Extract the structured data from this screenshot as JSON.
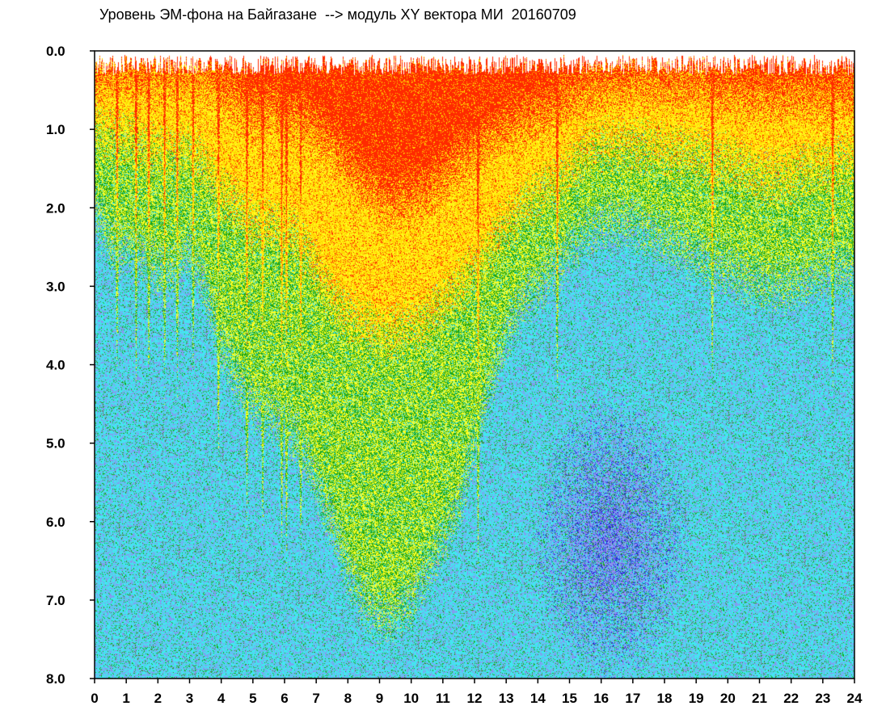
{
  "title": "Уровень ЭМ-фона на Байгазане  --> модуль XY вектора МИ  20160709",
  "chart_data": {
    "type": "heatmap",
    "title": "Уровень ЭМ-фона на Байгазане  --> модуль XY вектора МИ  20160709",
    "xlabel": "",
    "ylabel": "",
    "xlim": [
      0,
      24
    ],
    "ylim": [
      0,
      8
    ],
    "y_inverted": true,
    "xticks": [
      "0",
      "1",
      "2",
      "3",
      "4",
      "5",
      "6",
      "7",
      "8",
      "9",
      "10",
      "11",
      "12",
      "13",
      "14",
      "15",
      "16",
      "17",
      "18",
      "19",
      "20",
      "21",
      "22",
      "23",
      "24"
    ],
    "yticks": [
      "0.0",
      "1.0",
      "2.0",
      "3.0",
      "4.0",
      "5.0",
      "6.0",
      "7.0",
      "8.0"
    ],
    "color_scale": [
      "#ff2a00",
      "#ffd800",
      "#ffff20",
      "#1aa51a",
      "#43e6f0",
      "#8f8ff0",
      "#2a2ad8"
    ],
    "profile": {
      "description_hours": [
        0,
        0.5,
        1,
        1.5,
        2,
        2.5,
        3,
        3.5,
        4,
        4.5,
        5,
        5.5,
        6,
        6.5,
        7,
        7.5,
        8,
        8.5,
        9,
        9.5,
        10,
        10.5,
        11,
        11.5,
        12,
        12.5,
        13,
        13.5,
        14,
        14.5,
        15,
        15.5,
        16,
        16.5,
        17,
        17.5,
        18,
        18.5,
        19,
        19.5,
        20,
        20.5,
        21,
        21.5,
        22,
        22.5,
        23,
        23.5,
        24
      ],
      "red_edge": [
        0.3,
        0.3,
        0.25,
        0.3,
        0.3,
        0.3,
        0.25,
        0.3,
        0.5,
        0.6,
        0.8,
        0.7,
        0.9,
        0.8,
        1.0,
        1.2,
        1.5,
        1.7,
        1.9,
        1.9,
        1.9,
        1.8,
        1.6,
        1.4,
        1.3,
        1.1,
        1.0,
        0.9,
        0.8,
        0.7,
        0.6,
        0.5,
        0.45,
        0.4,
        0.4,
        0.4,
        0.45,
        0.45,
        0.45,
        0.5,
        0.5,
        0.55,
        0.6,
        0.6,
        0.55,
        0.55,
        0.55,
        0.55,
        0.55
      ],
      "yellow_edge": [
        1.0,
        1.1,
        1.1,
        1.2,
        1.3,
        1.3,
        1.2,
        1.5,
        1.8,
        2.0,
        2.2,
        2.2,
        2.3,
        2.4,
        2.8,
        3.2,
        3.4,
        3.5,
        3.6,
        3.6,
        3.5,
        3.4,
        3.2,
        3.0,
        2.8,
        2.5,
        2.2,
        2.0,
        1.8,
        1.7,
        1.5,
        1.3,
        1.2,
        1.2,
        1.2,
        1.2,
        1.3,
        1.3,
        1.3,
        1.4,
        1.4,
        1.5,
        1.6,
        1.6,
        1.6,
        1.5,
        1.5,
        1.4,
        1.4
      ],
      "green_edge": [
        2.0,
        2.5,
        2.5,
        2.6,
        2.8,
        2.8,
        2.5,
        3.0,
        3.8,
        4.2,
        4.5,
        4.6,
        4.8,
        5.0,
        5.5,
        6.0,
        6.6,
        7.0,
        7.2,
        7.2,
        7.0,
        6.6,
        6.2,
        5.8,
        5.0,
        4.2,
        3.6,
        3.2,
        3.0,
        2.8,
        2.5,
        2.3,
        2.2,
        2.2,
        2.2,
        2.3,
        2.4,
        2.5,
        2.6,
        2.7,
        2.8,
        2.9,
        3.0,
        3.0,
        3.0,
        2.9,
        2.8,
        2.8,
        2.8
      ],
      "blue_center_hour": 16.3,
      "blue_center_level": 6.2
    },
    "vertical_streaks_hours": [
      0.7,
      1.3,
      1.7,
      2.2,
      2.6,
      3.1,
      3.9,
      4.8,
      5.3,
      5.9,
      6.05,
      6.5,
      12.1,
      14.6,
      19.5,
      23.3
    ]
  }
}
